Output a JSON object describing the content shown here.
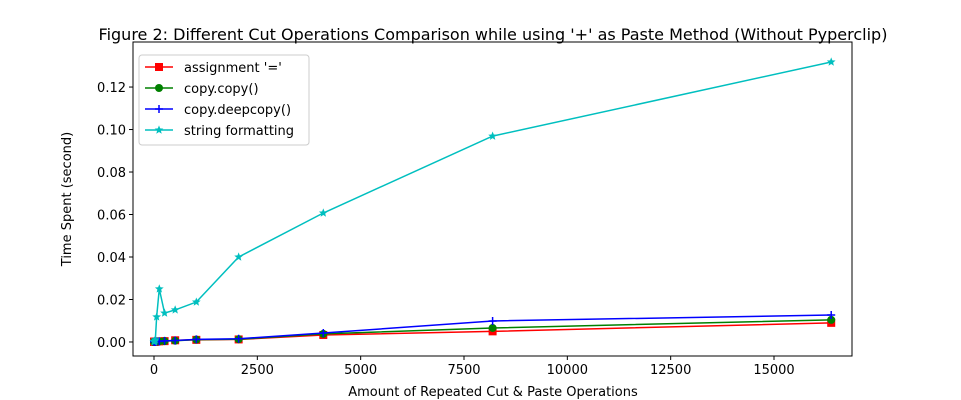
{
  "chart_data": {
    "type": "line",
    "title": "Figure 2: Different Cut Operations Comparison while using '+' as Paste Method (Without Pyperclip)",
    "x_label": "Amount of Repeated Cut & Paste Operations",
    "y_label": "Time Spent (second)",
    "x": [
      1,
      2,
      4,
      8,
      16,
      32,
      64,
      128,
      256,
      512,
      1024,
      2048,
      4096,
      8192,
      16384
    ],
    "series": [
      {
        "name": "assignment '='",
        "color": "#ff0000",
        "marker": "square",
        "values": [
          0.0001,
          0.0001,
          0.0001,
          0.0001,
          0.0001,
          0.0001,
          0.0002,
          0.0003,
          0.0004,
          0.0008,
          0.001,
          0.0012,
          0.0033,
          0.005,
          0.009
        ]
      },
      {
        "name": "copy.copy()",
        "color": "#008000",
        "marker": "circle",
        "values": [
          0.0001,
          0.0001,
          0.0001,
          0.0001,
          0.0001,
          0.0001,
          0.0002,
          0.0003,
          0.0004,
          0.0006,
          0.0011,
          0.0013,
          0.0038,
          0.0066,
          0.0104
        ]
      },
      {
        "name": "copy.deepcopy()",
        "color": "#0000ff",
        "marker": "plus",
        "values": [
          0.0001,
          0.0001,
          0.0001,
          0.0001,
          0.0001,
          0.0001,
          0.0002,
          0.0003,
          0.0005,
          0.0007,
          0.0012,
          0.0015,
          0.0042,
          0.0099,
          0.0127
        ]
      },
      {
        "name": "string formatting",
        "color": "#00bfbf",
        "marker": "star",
        "values": [
          0.0001,
          0.0001,
          0.0002,
          0.0003,
          0.0004,
          0.001,
          0.0118,
          0.025,
          0.0136,
          0.0151,
          0.0188,
          0.04,
          0.0607,
          0.0969,
          0.1318
        ]
      }
    ],
    "xlim": [
      -508,
      16887
    ],
    "ylim": [
      -0.0066,
      0.1412
    ],
    "xticks": [
      0,
      2500,
      5000,
      7500,
      10000,
      12500,
      15000
    ],
    "yticks": [
      {
        "value": 0,
        "label": "0.00"
      },
      {
        "value": 0.02,
        "label": "0.02"
      },
      {
        "value": 0.04,
        "label": "0.04"
      },
      {
        "value": 0.06,
        "label": "0.06"
      },
      {
        "value": 0.08,
        "label": "0.08"
      },
      {
        "value": 0.1,
        "label": "0.10"
      },
      {
        "value": 0.12,
        "label": "0.12"
      }
    ],
    "legend": "upper left",
    "grid": false
  }
}
